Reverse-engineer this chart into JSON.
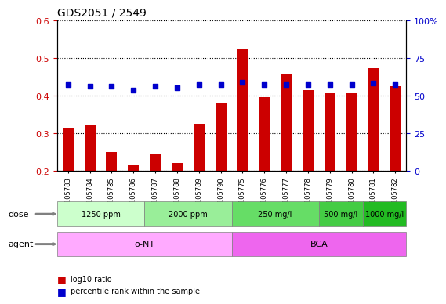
{
  "title": "GDS2051 / 2549",
  "samples": [
    "GSM105783",
    "GSM105784",
    "GSM105785",
    "GSM105786",
    "GSM105787",
    "GSM105788",
    "GSM105789",
    "GSM105790",
    "GSM105775",
    "GSM105776",
    "GSM105777",
    "GSM105778",
    "GSM105779",
    "GSM105780",
    "GSM105781",
    "GSM105782"
  ],
  "log10_ratio": [
    0.315,
    0.32,
    0.25,
    0.215,
    0.245,
    0.22,
    0.325,
    0.382,
    0.525,
    0.395,
    0.455,
    0.415,
    0.405,
    0.405,
    0.472,
    0.425
  ],
  "percentile_rank_pct": [
    57.5,
    56.3,
    56.3,
    53.8,
    56.3,
    55.0,
    57.5,
    57.5,
    58.8,
    57.5,
    57.0,
    57.5,
    57.5,
    57.5,
    58.3,
    57.0
  ],
  "bar_color": "#cc0000",
  "dot_color": "#0000cc",
  "ylim_left": [
    0.2,
    0.6
  ],
  "ylim_right": [
    0,
    100
  ],
  "yticks_left": [
    0.2,
    0.3,
    0.4,
    0.5,
    0.6
  ],
  "yticks_right": [
    0,
    25,
    50,
    75,
    100
  ],
  "ytick_right_labels": [
    "0",
    "25",
    "50",
    "75",
    "100%"
  ],
  "dose_labels": [
    {
      "text": "1250 ppm",
      "start": 0,
      "end": 4,
      "color": "#ccffcc"
    },
    {
      "text": "2000 ppm",
      "start": 4,
      "end": 8,
      "color": "#99ee99"
    },
    {
      "text": "250 mg/l",
      "start": 8,
      "end": 12,
      "color": "#66dd66"
    },
    {
      "text": "500 mg/l",
      "start": 12,
      "end": 14,
      "color": "#44cc44"
    },
    {
      "text": "1000 mg/l",
      "start": 14,
      "end": 16,
      "color": "#22bb22"
    }
  ],
  "agent_labels": [
    {
      "text": "o-NT",
      "start": 0,
      "end": 8,
      "color": "#ffaaff"
    },
    {
      "text": "BCA",
      "start": 8,
      "end": 16,
      "color": "#ee66ee"
    }
  ],
  "dose_row_label": "dose",
  "agent_row_label": "agent",
  "legend_bar_label": "log10 ratio",
  "legend_dot_label": "percentile rank within the sample",
  "tick_label_color_left": "#cc0000",
  "tick_label_color_right": "#0000cc"
}
